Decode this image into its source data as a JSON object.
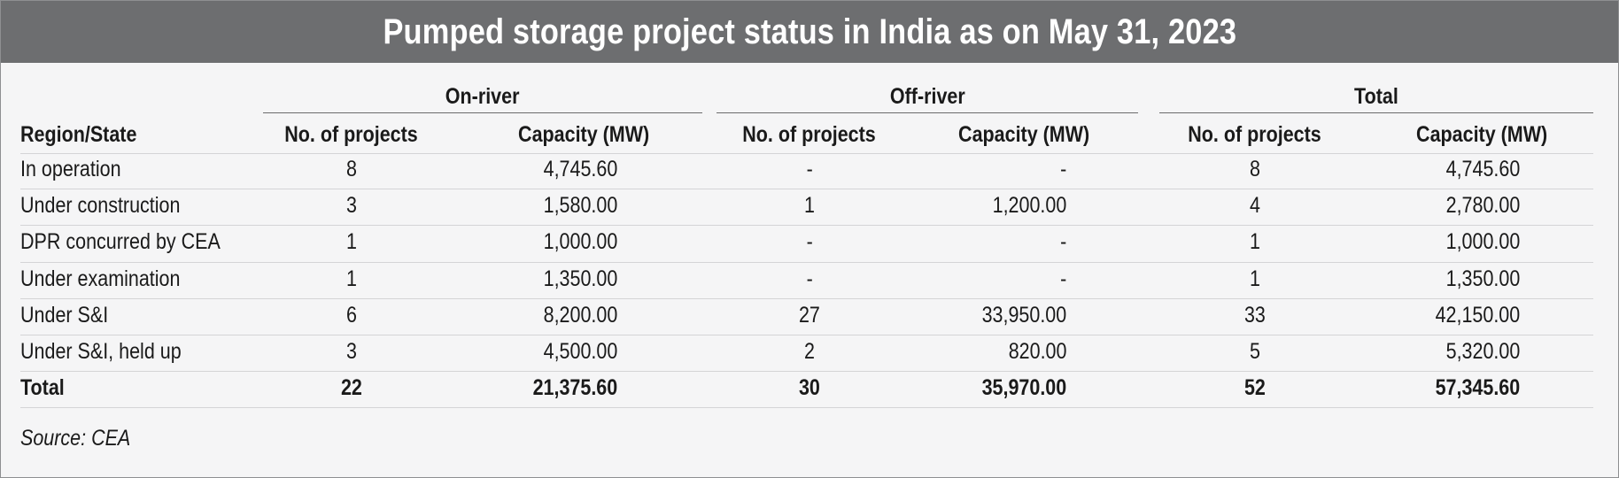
{
  "chart_data": {
    "type": "table",
    "title": "Pumped storage project status in India as on May 31, 2023",
    "groups": [
      "On-river",
      "Off-river",
      "Total"
    ],
    "columns": [
      "Region/State",
      "No. of projects",
      "Capacity (MW)",
      "No. of projects",
      "Capacity (MW)",
      "No. of projects",
      "Capacity (MW)"
    ],
    "rows": [
      [
        "In operation",
        "8",
        "4,745.60",
        "-",
        "-",
        "8",
        "4,745.60"
      ],
      [
        "Under construction",
        "3",
        "1,580.00",
        "1",
        "1,200.00",
        "4",
        "2,780.00"
      ],
      [
        "DPR concurred by CEA",
        "1",
        "1,000.00",
        "-",
        "-",
        "1",
        "1,000.00"
      ],
      [
        "Under examination",
        "1",
        "1,350.00",
        "-",
        "-",
        "1",
        "1,350.00"
      ],
      [
        "Under S&I",
        "6",
        "8,200.00",
        "27",
        "33,950.00",
        "33",
        "42,150.00"
      ],
      [
        "Under S&I, held up",
        "3",
        "4,500.00",
        "2",
        "820.00",
        "5",
        "5,320.00"
      ]
    ],
    "total_row": [
      "Total",
      "22",
      "21,375.60",
      "30",
      "35,970.00",
      "52",
      "57,345.60"
    ],
    "source": "Source: CEA"
  }
}
